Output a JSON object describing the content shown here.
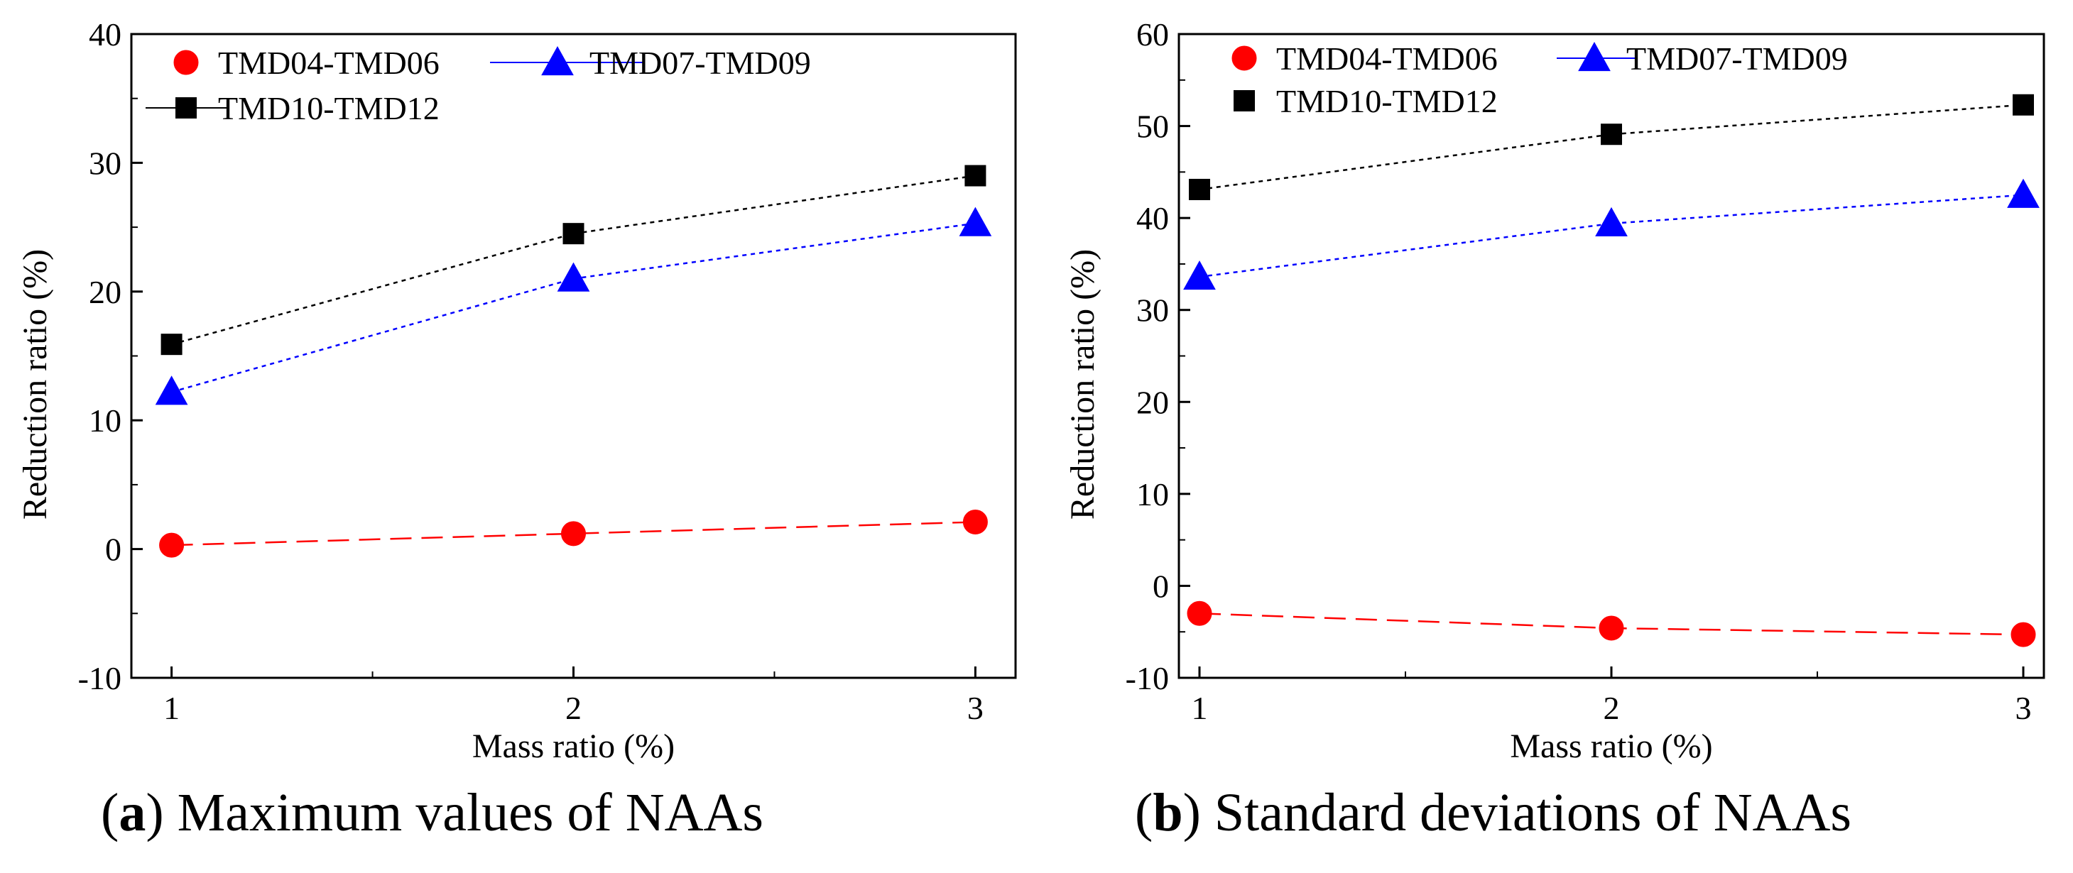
{
  "chart_data": [
    {
      "type": "line",
      "caption": {
        "letter": "a",
        "text": " Maximum values of NAAs"
      },
      "xlabel": "Mass ratio (%)",
      "ylabel": "Reduction ratio (%)",
      "categories": [
        "1",
        "2",
        "3"
      ],
      "x": [
        1,
        2,
        3
      ],
      "xlim": [
        0.9,
        3.1
      ],
      "ylim": [
        -10,
        40
      ],
      "yticks": [
        -10,
        0,
        10,
        20,
        30,
        40
      ],
      "series": [
        {
          "name": "TMD04-TMD06",
          "marker": "circle",
          "color": "#ff0000",
          "dash": "dashed",
          "values": [
            0.3,
            1.2,
            2.1
          ]
        },
        {
          "name": "TMD07-TMD09",
          "marker": "triangle",
          "color": "#0000ff",
          "dash": "dotted",
          "values": [
            12.2,
            21.0,
            25.3
          ]
        },
        {
          "name": "TMD10-TMD12",
          "marker": "square",
          "color": "#000000",
          "dash": "dotted",
          "values": [
            15.9,
            24.5,
            29.0
          ]
        }
      ]
    },
    {
      "type": "line",
      "caption": {
        "letter": "b",
        "text": " Standard deviations of NAAs"
      },
      "xlabel": "Mass ratio (%)",
      "ylabel": "Reduction ratio (%)",
      "categories": [
        "1",
        "2",
        "3"
      ],
      "x": [
        1,
        2,
        3
      ],
      "xlim": [
        0.95,
        3.05
      ],
      "ylim": [
        -10,
        60
      ],
      "yticks": [
        -10,
        0,
        10,
        20,
        30,
        40,
        50,
        60
      ],
      "series": [
        {
          "name": "TMD04-TMD06",
          "marker": "circle",
          "color": "#ff0000",
          "dash": "dashed",
          "values": [
            -3.0,
            -4.6,
            -5.3
          ]
        },
        {
          "name": "TMD07-TMD09",
          "marker": "triangle",
          "color": "#0000ff",
          "dash": "dotted",
          "values": [
            33.6,
            39.4,
            42.5
          ]
        },
        {
          "name": "TMD10-TMD12",
          "marker": "square",
          "color": "#000000",
          "dash": "dotted",
          "values": [
            43.1,
            49.1,
            52.3
          ]
        }
      ]
    }
  ]
}
